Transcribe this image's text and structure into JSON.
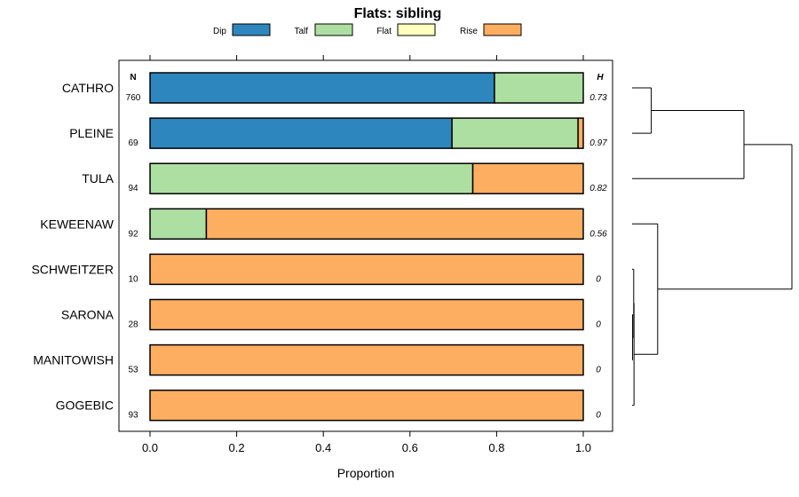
{
  "chart_data": {
    "type": "bar",
    "orientation": "horizontal",
    "stacked": true,
    "title": "Flats: sibling",
    "xlabel": "Proportion",
    "ylabel": "",
    "xlim": [
      0,
      1
    ],
    "x_ticks": [
      "0.0",
      "0.2",
      "0.4",
      "0.6",
      "0.8",
      "1.0"
    ],
    "x_tick_values": [
      0,
      0.2,
      0.4,
      0.6,
      0.8,
      1.0
    ],
    "legend_position": "top",
    "n_header": "N",
    "h_header": "H",
    "categories": [
      "CATHRO",
      "PLEINE",
      "TULA",
      "KEWEENAW",
      "SCHWEITZER",
      "SARONA",
      "MANITOWISH",
      "GOGEBIC"
    ],
    "n_values": [
      "760",
      "69",
      "94",
      "92",
      "10",
      "28",
      "53",
      "93"
    ],
    "h_values": [
      "0.73",
      "0.97",
      "0.82",
      "0.56",
      "0",
      "0",
      "0",
      "0"
    ],
    "series": [
      {
        "name": "Dip",
        "color": "#2e86be",
        "values": [
          0.795,
          0.697,
          0,
          0,
          0,
          0,
          0,
          0
        ]
      },
      {
        "name": "Talf",
        "color": "#addfa2",
        "values": [
          0.205,
          0.291,
          0.745,
          0.13,
          0,
          0,
          0,
          0
        ]
      },
      {
        "name": "Flat",
        "color": "#ffffbe",
        "values": [
          0,
          0,
          0,
          0,
          0,
          0,
          0,
          0
        ]
      },
      {
        "name": "Rise",
        "color": "#fdae61",
        "values": [
          0,
          0.012,
          0.255,
          0.87,
          1,
          1,
          1,
          1
        ]
      }
    ],
    "dendrogram": {
      "leaf_order": [
        "CATHRO",
        "PLEINE",
        "TULA",
        "KEWEENAW",
        "SCHWEITZER",
        "SARONA",
        "MANITOWISH",
        "GOGEBIC"
      ],
      "merges": [
        {
          "left": "SARONA",
          "right": "MANITOWISH",
          "height": 0.003
        },
        {
          "left": "SCHWEITZER",
          "right": "m1",
          "height": 0.01
        },
        {
          "left": "m2",
          "right": "GOGEBIC",
          "height": 0.012
        },
        {
          "left": "KEWEENAW",
          "right": "m3",
          "height": 0.16
        },
        {
          "left": "CATHRO",
          "right": "PLEINE",
          "height": 0.12
        },
        {
          "left": "m5",
          "right": "TULA",
          "height": 0.7
        },
        {
          "left": "m6",
          "right": "m4",
          "height": 1.0
        }
      ]
    }
  }
}
